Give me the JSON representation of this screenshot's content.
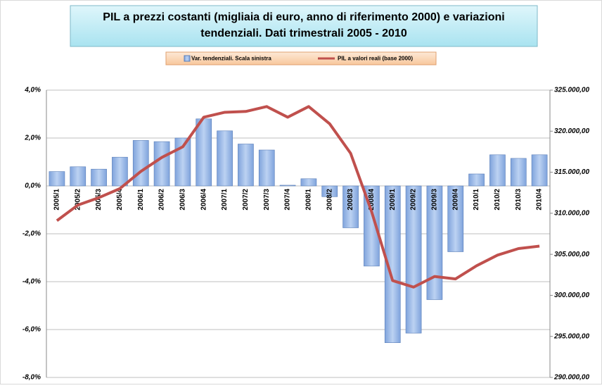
{
  "chart_data": {
    "type": "bar_line",
    "title": [
      "PIL a prezzi costanti (migliaia di euro, anno di riferimento 2000) e variazioni",
      "tendenziali. Dati trimestrali 2005   - 2010"
    ],
    "categories": [
      "2005/1",
      "2005/2",
      "2005/3",
      "2005/4",
      "2006/1",
      "2006/2",
      "2006/3",
      "2006/4",
      "2007/1",
      "2007/2",
      "2007/3",
      "2007/4",
      "2008/1",
      "2008/2",
      "2008/3",
      "2008/4",
      "2009/1",
      "2009/2",
      "2009/3",
      "2009/4",
      "2010/1",
      "2010/2",
      "2010/3",
      "2010/4"
    ],
    "series": [
      {
        "name": "Var. tendenziali.  Scala sinistra",
        "color": "#9dbbe8",
        "kind": "bar",
        "values": [
          0.6,
          0.8,
          0.7,
          1.2,
          1.9,
          1.85,
          2.0,
          2.8,
          2.3,
          1.75,
          1.5,
          0.03,
          0.3,
          -0.45,
          -1.75,
          -3.35,
          -6.55,
          -6.15,
          -4.75,
          -2.75,
          0.5,
          1.3,
          1.15,
          1.3
        ]
      },
      {
        "name": "PIL a valori reali (base 2000)",
        "color": "#c0504d",
        "kind": "line",
        "axis": "y2",
        "values": [
          309100,
          311000,
          311900,
          313000,
          315100,
          316800,
          318100,
          321700,
          322300,
          322400,
          323000,
          321700,
          323000,
          320900,
          317300,
          310200,
          301800,
          301000,
          302300,
          302000,
          303600,
          304900,
          305700,
          306000
        ]
      }
    ],
    "ylim": [
      -8,
      4
    ],
    "yticks": [
      {
        "value": 4,
        "label": "4,0%"
      },
      {
        "value": 2,
        "label": "2,0%"
      },
      {
        "value": 0,
        "label": "0,0%"
      },
      {
        "value": -2,
        "label": "-2,0%"
      },
      {
        "value": -4,
        "label": "-4,0%"
      },
      {
        "value": -6,
        "label": "-6,0%"
      },
      {
        "value": -8,
        "label": "-8,0%"
      }
    ],
    "y2lim": [
      290000,
      325000
    ],
    "y2ticks": [
      {
        "value": 325000,
        "label": "325.000,00"
      },
      {
        "value": 320000,
        "label": "320.000,00"
      },
      {
        "value": 315000,
        "label": "315.000,00"
      },
      {
        "value": 310000,
        "label": "310.000,00"
      },
      {
        "value": 305000,
        "label": "305.000,00"
      },
      {
        "value": 300000,
        "label": "300.000,00"
      },
      {
        "value": 295000,
        "label": "295.000,00"
      },
      {
        "value": 290000,
        "label": "290.000,00"
      }
    ],
    "grid": true
  }
}
